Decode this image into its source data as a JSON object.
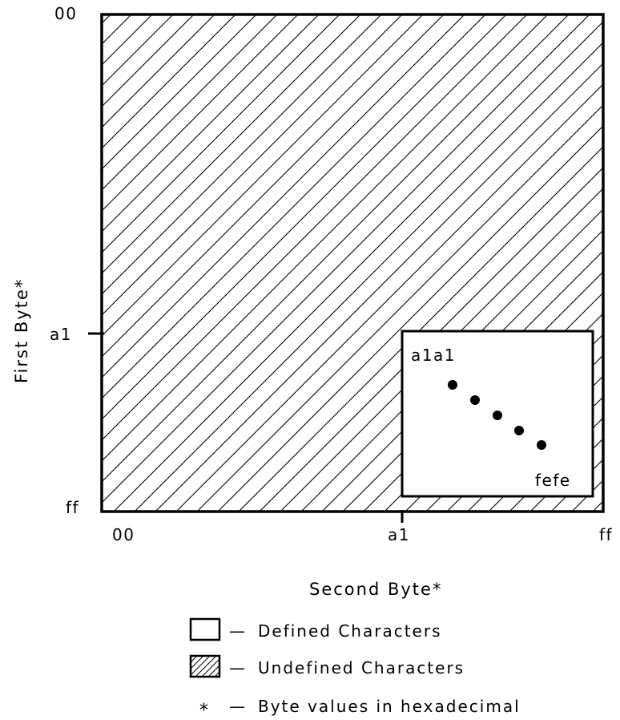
{
  "diagram": {
    "axes": {
      "y_label": "First Byte*",
      "x_label": "Second Byte*",
      "y_ticks": {
        "start": "00",
        "mid": "a1",
        "end": "ff"
      },
      "x_ticks": {
        "start": "00",
        "mid": "a1",
        "end": "ff"
      }
    },
    "defined_region": {
      "start_label": "a1a1",
      "end_label": "fefe"
    },
    "legend": {
      "defined_text": "Defined Characters",
      "undefined_text": "Undefined Characters",
      "star_symbol": "*",
      "star_text": "Byte values in hexadecimal",
      "dash": "—"
    },
    "colors": {
      "line": "#000000",
      "background": "#ffffff"
    }
  }
}
